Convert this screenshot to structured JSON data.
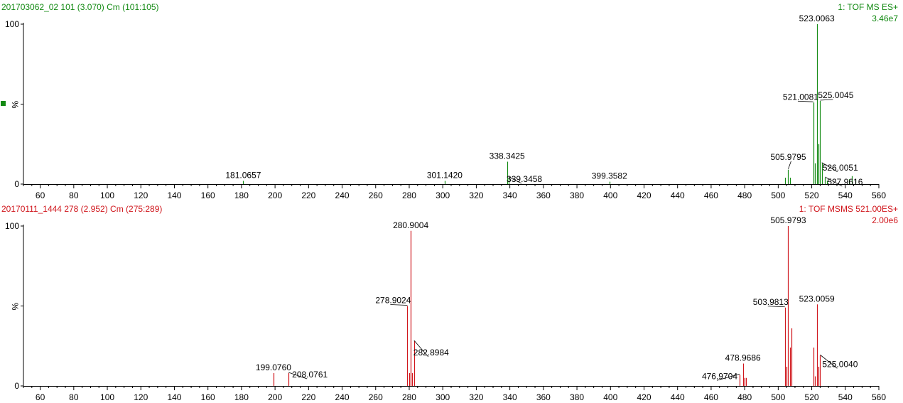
{
  "spectra": [
    {
      "header_left": "201703062_02 101 (3.070) Cm (101:105)",
      "header_right": "1: TOF MS ES+",
      "intensity": "3.46e7",
      "color": "#138a13"
    },
    {
      "header_left": "20170111_1444 278 (2.952) Cm (275:289)",
      "header_right": "1: TOF MSMS 521.00ES+",
      "intensity": "2.00e6",
      "color": "#d0161c"
    }
  ],
  "chart_data": [
    {
      "type": "bar",
      "title": "201703062_02 101 (3.070) Cm (101:105)",
      "xlim": [
        50,
        560
      ],
      "ylim": [
        0,
        100
      ],
      "yticks": [
        "0",
        "%",
        "100"
      ],
      "xticks": [
        60,
        80,
        100,
        120,
        140,
        160,
        180,
        200,
        220,
        240,
        260,
        280,
        300,
        320,
        340,
        360,
        380,
        400,
        420,
        440,
        460,
        480,
        500,
        520,
        540,
        560
      ],
      "peaks": [
        {
          "mz": 181.0657,
          "value": 2
        },
        {
          "mz": 301.142,
          "value": 2
        },
        {
          "mz": 338.3425,
          "value": 14
        },
        {
          "mz": 339.3458,
          "value": 4
        },
        {
          "mz": 399.3582,
          "value": 1.5
        },
        {
          "mz": 504.0,
          "value": 4
        },
        {
          "mz": 505.9795,
          "value": 9
        },
        {
          "mz": 507.0,
          "value": 4
        },
        {
          "mz": 521.0081,
          "value": 51
        },
        {
          "mz": 522.0,
          "value": 13
        },
        {
          "mz": 523.0063,
          "value": 100
        },
        {
          "mz": 524.0,
          "value": 25
        },
        {
          "mz": 525.0045,
          "value": 52
        },
        {
          "mz": 526.0051,
          "value": 13
        },
        {
          "mz": 527.9616,
          "value": 4
        },
        {
          "mz": 529.0,
          "value": 2
        },
        {
          "mz": 542.0,
          "value": 3
        },
        {
          "mz": 544.0,
          "value": 5
        },
        {
          "mz": 546.0,
          "value": 3
        }
      ],
      "labels": [
        "181.0657",
        "301.1420",
        "338.3425",
        "339.3458",
        "399.3582",
        "505.9795",
        "521.0081",
        "523.0063",
        "525.0045",
        "526.0051",
        "527.9616"
      ]
    },
    {
      "type": "bar",
      "title": "20170111_1444 278 (2.952) Cm (275:289)",
      "xlim": [
        50,
        560
      ],
      "ylim": [
        0,
        100
      ],
      "yticks": [
        "0",
        "%",
        "100"
      ],
      "xticks": [
        60,
        80,
        100,
        120,
        140,
        160,
        180,
        200,
        220,
        240,
        260,
        280,
        300,
        320,
        340,
        360,
        380,
        400,
        420,
        440,
        460,
        480,
        500,
        520,
        540,
        560
      ],
      "peaks": [
        {
          "mz": 199.076,
          "value": 8
        },
        {
          "mz": 208.0761,
          "value": 8
        },
        {
          "mz": 278.9024,
          "value": 50
        },
        {
          "mz": 279.9,
          "value": 8
        },
        {
          "mz": 280.9004,
          "value": 97
        },
        {
          "mz": 281.9,
          "value": 8
        },
        {
          "mz": 282.8984,
          "value": 28
        },
        {
          "mz": 476.9704,
          "value": 7
        },
        {
          "mz": 478.9686,
          "value": 14
        },
        {
          "mz": 479.9,
          "value": 5
        },
        {
          "mz": 480.9,
          "value": 5
        },
        {
          "mz": 503.9813,
          "value": 49
        },
        {
          "mz": 504.9,
          "value": 12
        },
        {
          "mz": 505.9793,
          "value": 100
        },
        {
          "mz": 506.9,
          "value": 24
        },
        {
          "mz": 507.9,
          "value": 36
        },
        {
          "mz": 521.0,
          "value": 24
        },
        {
          "mz": 522.0,
          "value": 6
        },
        {
          "mz": 523.0059,
          "value": 51
        },
        {
          "mz": 524.0,
          "value": 12
        },
        {
          "mz": 525.004,
          "value": 19
        }
      ],
      "labels": [
        "199.0760",
        "208.0761",
        "278.9024",
        "280.9004",
        "282.8984",
        "476.9704",
        "478.9686",
        "503.9813",
        "505.9793",
        "523.0059",
        "525.0040"
      ]
    }
  ]
}
